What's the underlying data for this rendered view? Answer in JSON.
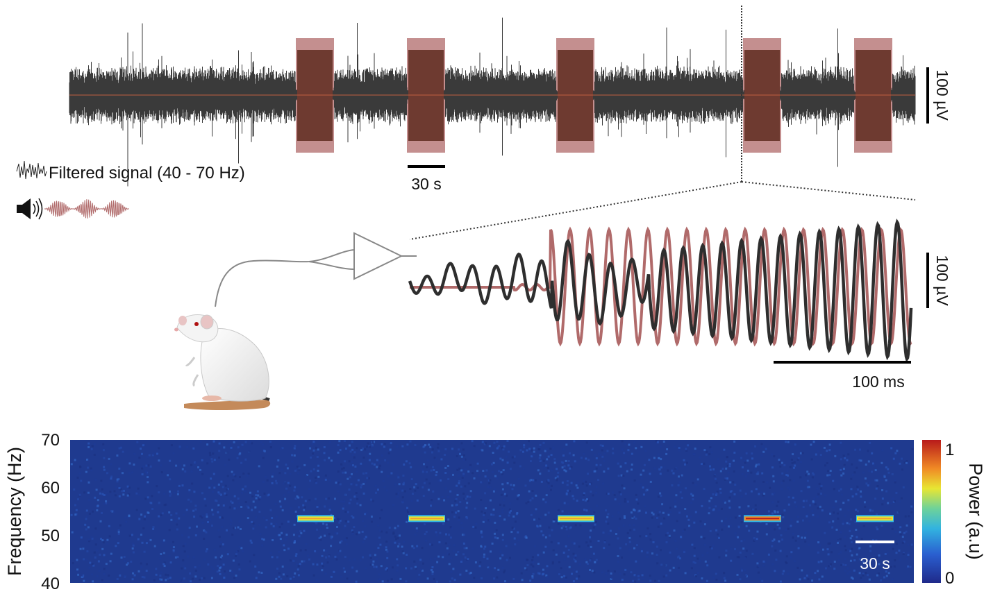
{
  "top_panel": {
    "stim_blocks": 5,
    "scale_time_label": "30 s",
    "scale_amp_label": "100 µV"
  },
  "legend": {
    "filtered_signal": "Filtered signal (40 - 70 Hz)"
  },
  "zoom_panel": {
    "scale_time_label": "100 ms",
    "scale_amp_label": "100 µV"
  },
  "spectrogram": {
    "ylabel": "Frequency (Hz)",
    "yticks": [
      "70",
      "60",
      "50",
      "40"
    ],
    "scale_time_label": "30 s",
    "colorbar_label": "Power (a.u)",
    "colorbar_ticks": [
      "1",
      "0"
    ],
    "band_frequency_hz": 53.5,
    "band_peak_power": [
      0.6,
      0.55,
      0.55,
      0.85,
      0.6
    ]
  },
  "colors": {
    "trace": "#3a3a3a",
    "stimulus": "#b06a6a",
    "stimulus_fill": "#a45a5a",
    "spectrogram_bg": "#1f3a8f"
  }
}
